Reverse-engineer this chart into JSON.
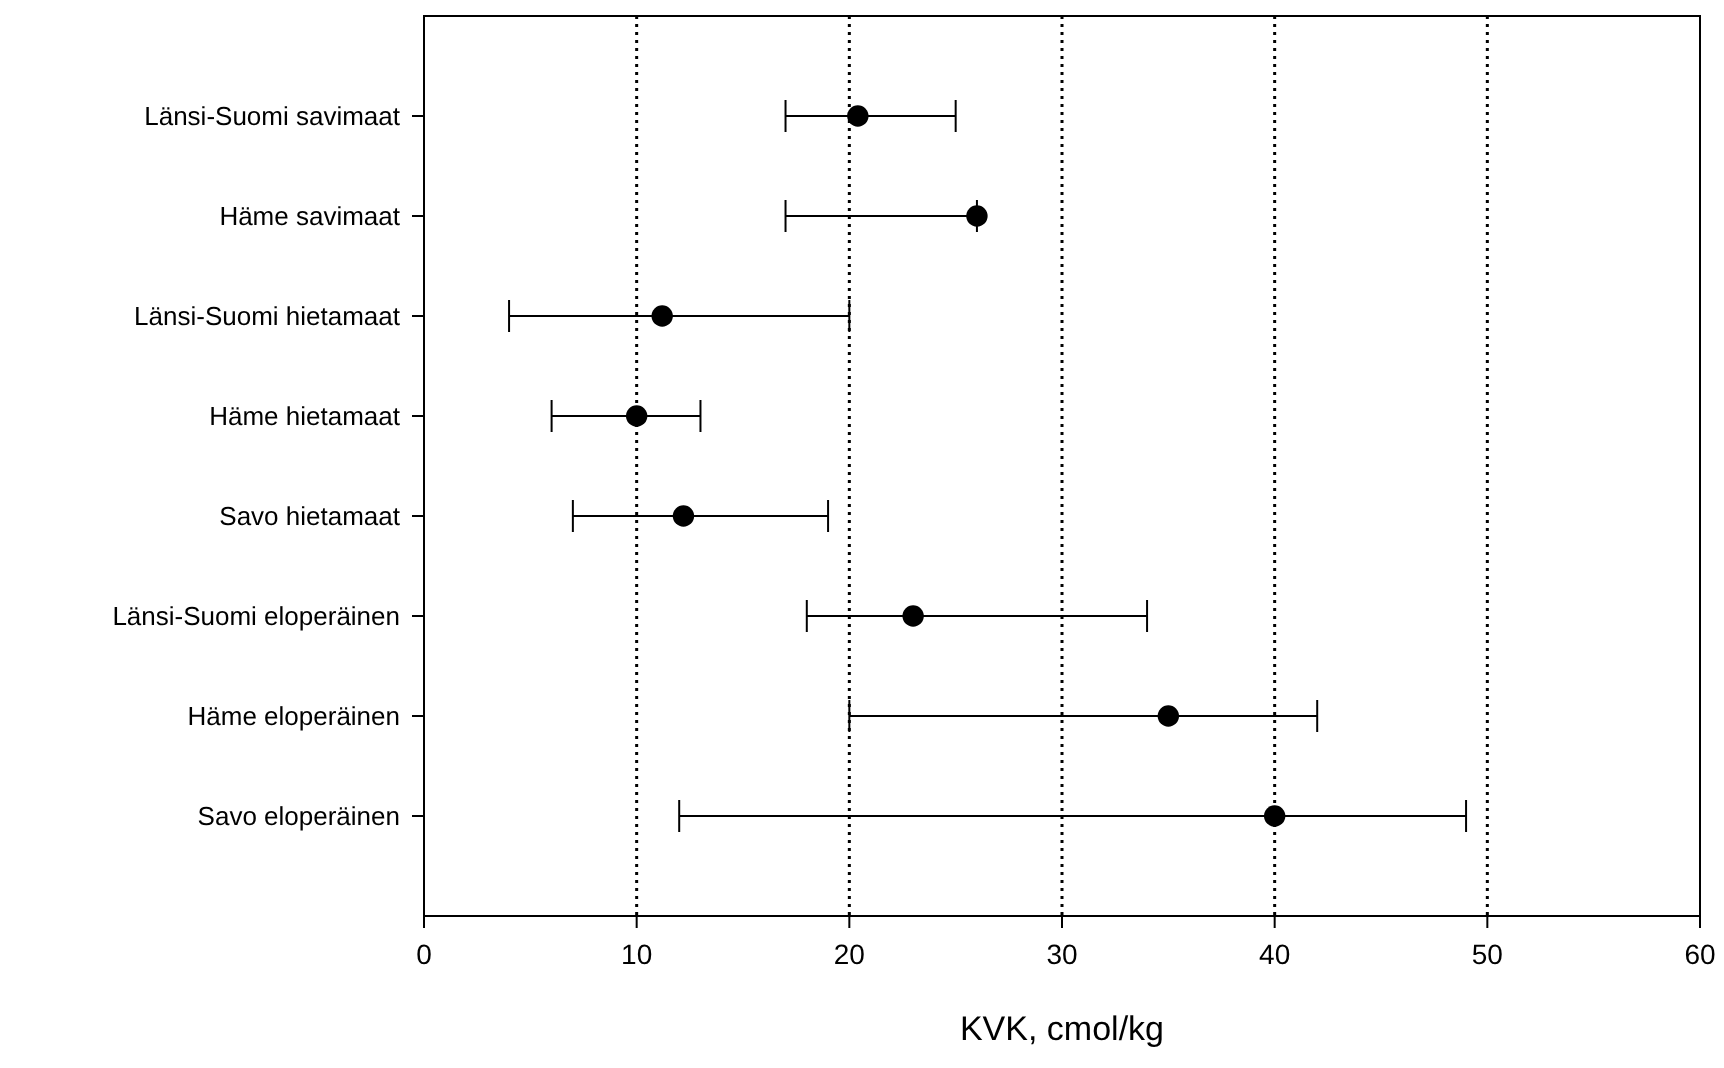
{
  "chart_data": {
    "type": "scatter",
    "orientation": "horizontal",
    "xlabel": "KVK, cmol/kg",
    "categories": [
      "Länsi-Suomi savimaat",
      "Häme savimaat",
      "Länsi-Suomi hietamaat",
      "Häme hietamaat",
      "Savo hietamaat",
      "Länsi-Suomi eloperäinen",
      "Häme eloperäinen",
      "Savo eloperäinen"
    ],
    "values": [
      20.4,
      26,
      11.2,
      10,
      12.2,
      23,
      35,
      40
    ],
    "errors": [
      [
        17,
        25
      ],
      [
        17,
        26
      ],
      [
        4,
        20
      ],
      [
        6,
        13
      ],
      [
        7,
        19
      ],
      [
        18,
        34
      ],
      [
        20,
        42
      ],
      [
        12,
        49
      ]
    ],
    "color": "#000000",
    "marker": "circle",
    "xlim": [
      0,
      60
    ],
    "xticks": [
      0,
      10,
      20,
      30,
      40,
      50,
      60
    ],
    "grid": "x"
  }
}
